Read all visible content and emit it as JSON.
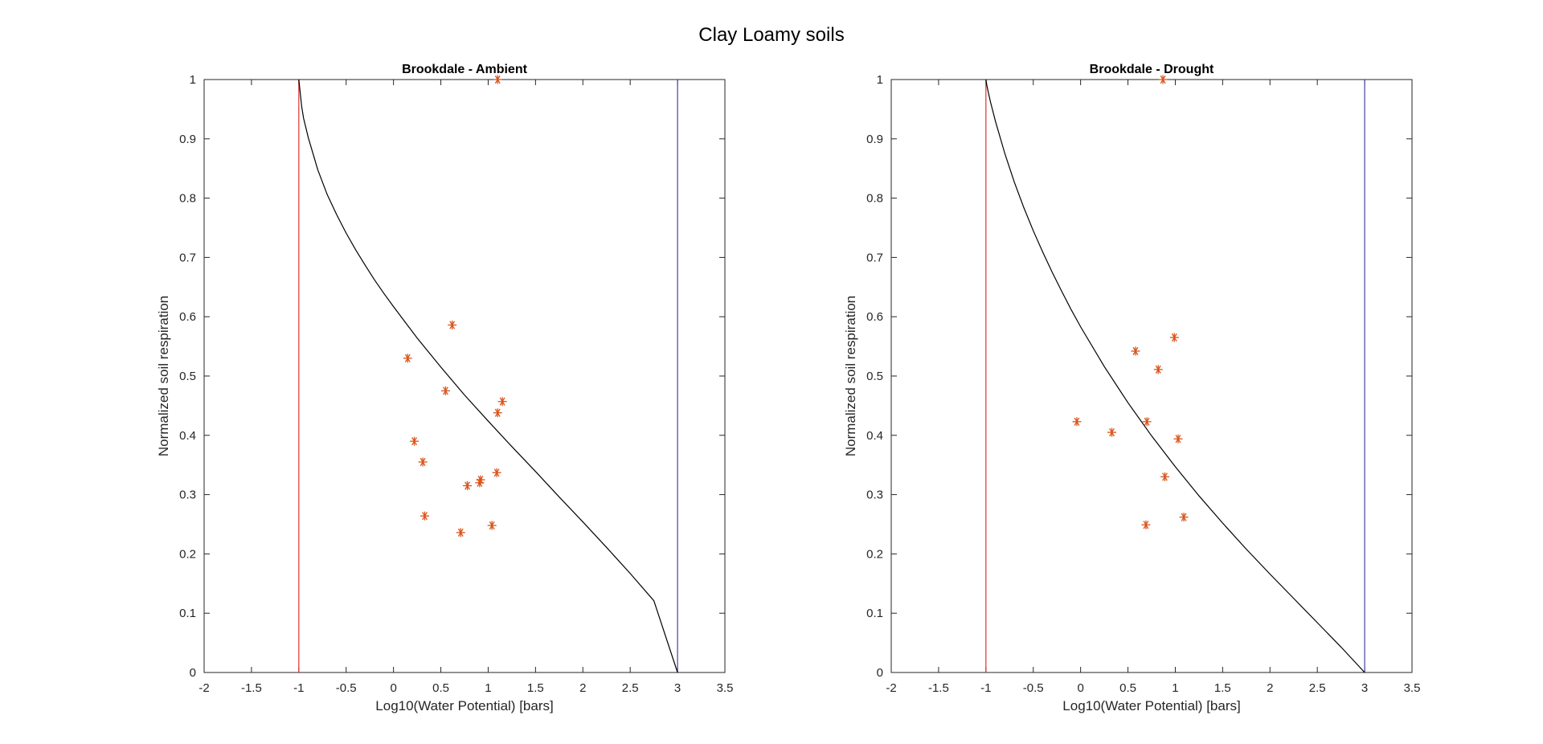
{
  "figure": {
    "title": "Clay Loamy soils"
  },
  "colors": {
    "points": "#D95319",
    "curve": "#000000",
    "left_line": "#E03030",
    "right_line": "#4040A0",
    "axes": "#262626"
  },
  "chart_data": [
    {
      "type": "scatter",
      "title": "Brookdale - Ambient",
      "xlabel": "Log10(Water Potential) [bars]",
      "ylabel": "Normalized soil respiration",
      "xlim": [
        -2,
        3.5
      ],
      "ylim": [
        0,
        1
      ],
      "xticks": [
        "-2",
        "-1.5",
        "-1",
        "-0.5",
        "0",
        "0.5",
        "1",
        "1.5",
        "2",
        "2.5",
        "3",
        "3.5"
      ],
      "yticks": [
        "0",
        "0.1",
        "0.2",
        "0.3",
        "0.4",
        "0.5",
        "0.6",
        "0.7",
        "0.8",
        "0.9",
        "1"
      ],
      "marker": "asterisk",
      "points": {
        "x": [
          1.1,
          0.62,
          0.15,
          0.55,
          1.15,
          1.1,
          0.22,
          0.31,
          1.09,
          0.92,
          0.91,
          0.78,
          0.33,
          1.04,
          0.71
        ],
        "y": [
          1.0,
          0.586,
          0.53,
          0.475,
          0.457,
          0.438,
          0.39,
          0.355,
          0.337,
          0.325,
          0.32,
          0.315,
          0.264,
          0.248,
          0.236
        ]
      },
      "vertical_lines": [
        {
          "x": -1,
          "color_key": "left_line"
        },
        {
          "x": 3,
          "color_key": "right_line"
        }
      ],
      "curve": {
        "x": [
          -1.0,
          -0.99,
          -0.97,
          -0.95,
          -0.9,
          -0.8,
          -0.7,
          -0.6,
          -0.5,
          -0.4,
          -0.3,
          -0.2,
          -0.1,
          0.0,
          0.25,
          0.5,
          0.75,
          1.0,
          1.25,
          1.5,
          1.75,
          2.0,
          2.25,
          2.5,
          2.75,
          3.0
        ],
        "y": [
          1.0,
          0.985,
          0.955,
          0.935,
          0.902,
          0.848,
          0.806,
          0.772,
          0.741,
          0.713,
          0.687,
          0.662,
          0.639,
          0.617,
          0.564,
          0.515,
          0.468,
          0.424,
          0.381,
          0.339,
          0.296,
          0.254,
          0.211,
          0.167,
          0.121,
          0.0
        ]
      }
    },
    {
      "type": "scatter",
      "title": "Brookdale - Drought",
      "xlabel": "Log10(Water Potential) [bars]",
      "ylabel": "Normalized soil respiration",
      "xlim": [
        -2,
        3.5
      ],
      "ylim": [
        0,
        1
      ],
      "xticks": [
        "-2",
        "-1.5",
        "-1",
        "-0.5",
        "0",
        "0.5",
        "1",
        "1.5",
        "2",
        "2.5",
        "3",
        "3.5"
      ],
      "yticks": [
        "0",
        "0.1",
        "0.2",
        "0.3",
        "0.4",
        "0.5",
        "0.6",
        "0.7",
        "0.8",
        "0.9",
        "1"
      ],
      "marker": "asterisk",
      "points": {
        "x": [
          0.87,
          0.99,
          0.58,
          0.82,
          -0.04,
          0.7,
          0.33,
          1.03,
          0.89,
          1.09,
          0.69
        ],
        "y": [
          1.0,
          0.565,
          0.542,
          0.511,
          0.423,
          0.423,
          0.405,
          0.394,
          0.33,
          0.262,
          0.249
        ]
      },
      "vertical_lines": [
        {
          "x": -1,
          "color_key": "left_line"
        },
        {
          "x": 3,
          "color_key": "right_line"
        }
      ],
      "curve": {
        "x": [
          -1.0,
          -0.99,
          -0.97,
          -0.95,
          -0.9,
          -0.8,
          -0.7,
          -0.6,
          -0.5,
          -0.4,
          -0.3,
          -0.2,
          -0.1,
          0.0,
          0.25,
          0.5,
          0.75,
          1.0,
          1.25,
          1.5,
          1.75,
          2.0,
          2.25,
          2.5,
          2.75,
          3.0
        ],
        "y": [
          1.0,
          0.99,
          0.975,
          0.961,
          0.93,
          0.875,
          0.827,
          0.784,
          0.745,
          0.709,
          0.675,
          0.643,
          0.612,
          0.583,
          0.516,
          0.455,
          0.399,
          0.347,
          0.298,
          0.252,
          0.208,
          0.166,
          0.125,
          0.084,
          0.043,
          0.0
        ]
      }
    }
  ]
}
